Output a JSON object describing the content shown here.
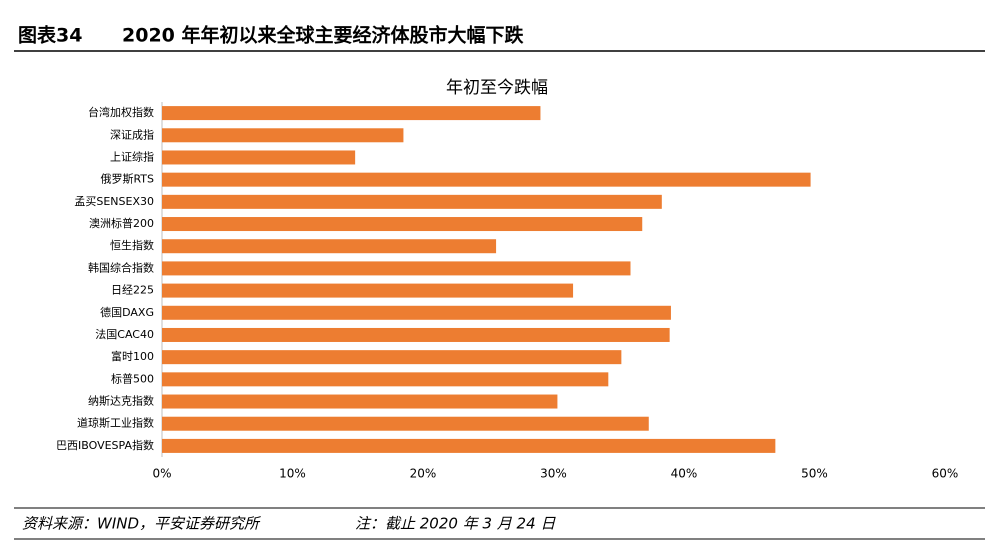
{
  "header": {
    "label": "图表34",
    "title": "2020 年年初以来全球主要经济体股市大幅下跌"
  },
  "footer": {
    "source": "资料来源：WIND，平安证券研究所",
    "note": "注：截止 2020 年 3 月 24 日"
  },
  "chart_data": {
    "type": "bar",
    "orientation": "horizontal",
    "title": "年初至今跌幅",
    "categories": [
      "台湾加权指数",
      "深证成指",
      "上证综指",
      "俄罗斯RTS",
      "孟买SENSEX30",
      "澳洲标普200",
      "恒生指数",
      "韩国综合指数",
      "日经225",
      "德国DAXG",
      "法国CAC40",
      "富时100",
      "标普500",
      "纳斯达克指数",
      "道琼斯工业指数",
      "巴西IBOVESPA指数"
    ],
    "values": [
      29.0,
      18.5,
      14.8,
      49.7,
      38.3,
      36.8,
      25.6,
      35.9,
      31.5,
      39.0,
      38.9,
      35.2,
      34.2,
      30.3,
      37.3,
      47.0
    ],
    "color": "#ed7d31",
    "xlim": [
      0,
      60
    ],
    "xticks": [
      {
        "value": 0,
        "label": "0%"
      },
      {
        "value": 10,
        "label": "10%"
      },
      {
        "value": 20,
        "label": "20%"
      },
      {
        "value": 30,
        "label": "30%"
      },
      {
        "value": 40,
        "label": "40%"
      },
      {
        "value": 50,
        "label": "50%"
      },
      {
        "value": 60,
        "label": "60%"
      }
    ],
    "grid": false
  }
}
